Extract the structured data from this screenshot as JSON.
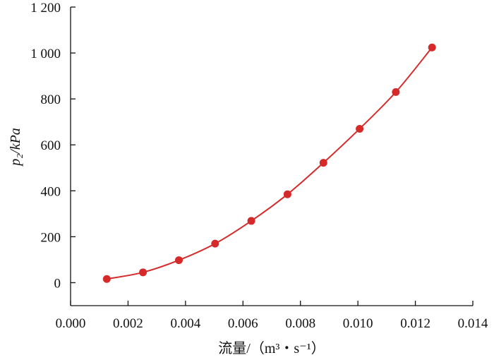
{
  "chart_data": {
    "type": "scatter",
    "x_label": "流量/（m³・s⁻¹）",
    "y_label": "p₂/kPa",
    "x_range": [
      0.0,
      0.014
    ],
    "y_range": [
      -100,
      1200
    ],
    "x_ticks": [
      0.0,
      0.002,
      0.004,
      0.006,
      0.008,
      0.01,
      0.012,
      0.014
    ],
    "x_tick_labels": [
      "0.000",
      "0.002",
      "0.004",
      "0.006",
      "0.008",
      "0.010",
      "0.012",
      "0.014"
    ],
    "y_ticks": [
      0,
      200,
      400,
      600,
      800,
      1000,
      1200
    ],
    "y_tick_labels": [
      "0",
      "200",
      "400",
      "600",
      "800",
      "1 000",
      "1 200"
    ],
    "grid": false,
    "legend": "none",
    "series": [
      {
        "color": "#d62a2a",
        "x": [
          0.00126,
          0.00252,
          0.00377,
          0.00503,
          0.00629,
          0.00755,
          0.0088,
          0.01006,
          0.01132,
          0.01258
        ],
        "y": [
          16,
          45,
          98,
          170,
          269,
          385,
          522,
          670,
          830,
          1024
        ]
      }
    ]
  }
}
